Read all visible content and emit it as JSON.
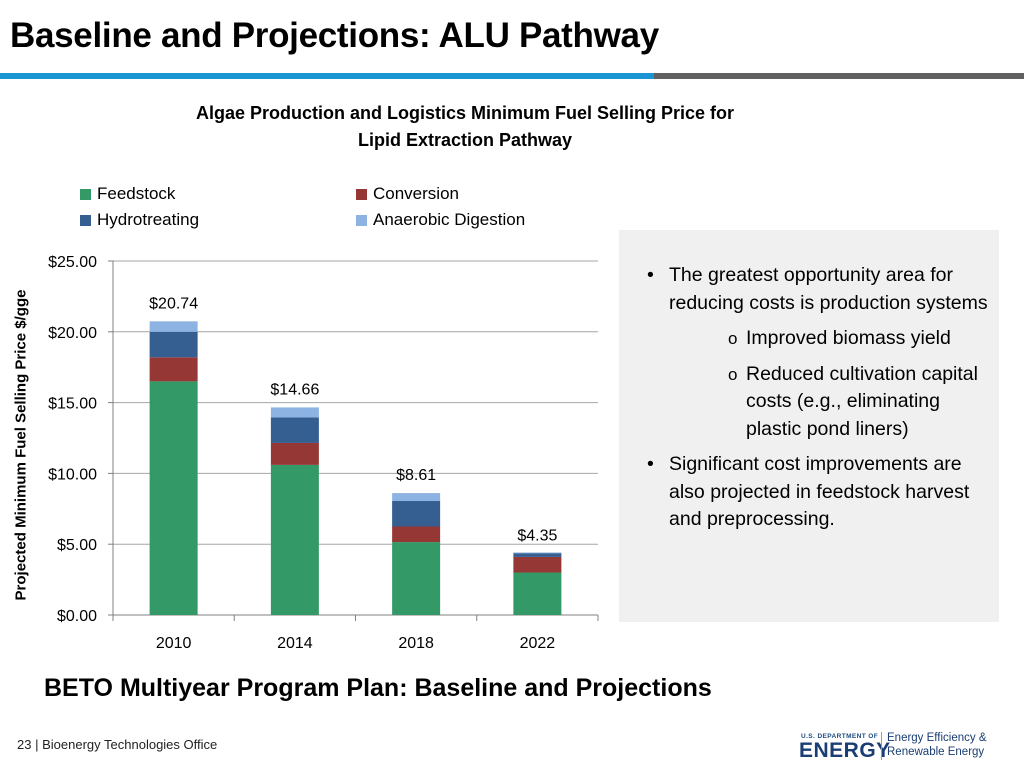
{
  "slide": {
    "title": "Baseline and Projections: ALU Pathway",
    "bottom_title": "BETO Multiyear Program Plan: Baseline and Projections",
    "footer_page": "23",
    "footer_separator": "|",
    "footer_org": "Bioenergy Technologies Office"
  },
  "logo": {
    "dept_line": "U.S. DEPARTMENT OF",
    "dept_word": "ENERGY",
    "office_line1": "Energy Efficiency &",
    "office_line2": "Renewable Energy"
  },
  "bullets": [
    {
      "text": "The greatest opportunity area for reducing costs is production systems",
      "sub": [
        "Improved biomass yield",
        "Reduced cultivation capital costs (e.g., eliminating plastic pond liners)"
      ]
    },
    {
      "text": "Significant cost improvements are also projected in feedstock harvest and preprocessing.",
      "sub": []
    }
  ],
  "chart_data": {
    "type": "bar",
    "stacked": true,
    "title_line1": "Algae Production and Logistics Minimum Fuel Selling Price for",
    "title_line2": "Lipid Extraction Pathway",
    "ylabel": "Projected Minimum Fuel Selling Price $/gge",
    "xlabel": "",
    "categories": [
      "2010",
      "2014",
      "2018",
      "2022"
    ],
    "series": [
      {
        "name": "Feedstock",
        "color": "#339966",
        "values": [
          16.5,
          10.6,
          5.15,
          3.0
        ]
      },
      {
        "name": "Conversion",
        "color": "#953735",
        "values": [
          1.7,
          1.55,
          1.1,
          1.1
        ]
      },
      {
        "name": "Hydrotreating",
        "color": "#365f91",
        "values": [
          1.8,
          1.8,
          1.8,
          0.3
        ]
      },
      {
        "name": "Anaerobic Digestion",
        "color": "#8db3e2",
        "values": [
          0.74,
          0.71,
          0.56,
          -0.05
        ]
      }
    ],
    "totals": [
      "$20.74",
      "$14.66",
      "$8.61",
      "$4.35"
    ],
    "ylim": [
      0,
      25
    ],
    "yticks": [
      0,
      5,
      10,
      15,
      20,
      25
    ],
    "ytick_labels": [
      "$0.00",
      "$5.00",
      "$10.00",
      "$15.00",
      "$20.00",
      "$25.00"
    ],
    "grid": true,
    "legend_position": "top"
  }
}
